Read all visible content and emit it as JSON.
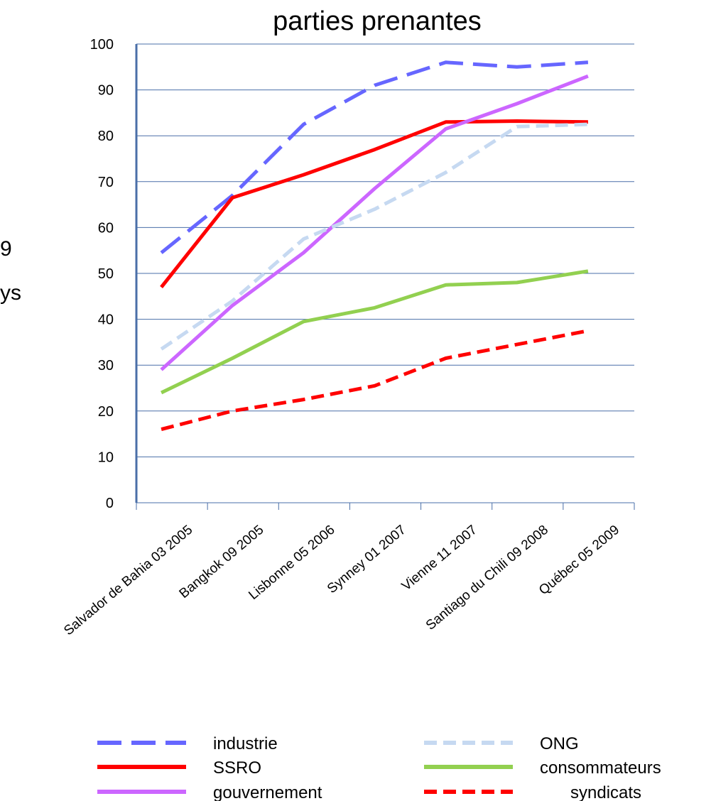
{
  "chart_data": {
    "type": "line",
    "title": "parties prenantes",
    "categories": [
      "Salvador de Bahia 03 2005",
      "Bangkok 09 2005",
      "Lisbonne 05 2006",
      "Synney 01 2007",
      "Vienne 11 2007",
      "Santiago du Chili 09 2008",
      "Québec 05 2009"
    ],
    "ylim": [
      0,
      100
    ],
    "yticks": [
      0,
      10,
      20,
      30,
      40,
      50,
      60,
      70,
      80,
      90,
      100
    ],
    "grid": true,
    "legend_position": "bottom",
    "series": [
      {
        "name": "industrie",
        "color": "#6666ff",
        "dash": "long-dash",
        "values": [
          54.5,
          67,
          82.5,
          91,
          96,
          95,
          96
        ]
      },
      {
        "name": "SSRO",
        "color": "#ff0000",
        "dash": "solid",
        "values": [
          47,
          66.5,
          71.5,
          77,
          83,
          83.2,
          83
        ]
      },
      {
        "name": "gouvernement",
        "color": "#cc66ff",
        "dash": "solid",
        "values": [
          29,
          43,
          54.5,
          68.5,
          81.5,
          87,
          93
        ]
      },
      {
        "name": "ONG",
        "color": "#c6d9f1",
        "dash": "dash",
        "values": [
          33.5,
          44,
          57.5,
          64,
          72,
          82,
          82.5
        ]
      },
      {
        "name": "consommateurs",
        "color": "#92d050",
        "dash": "solid",
        "values": [
          24,
          31.5,
          39.5,
          42.5,
          47.5,
          48,
          50.5
        ]
      },
      {
        "name": "syndicats",
        "color": "#ff0000",
        "dash": "dash",
        "values": [
          16,
          20,
          22.5,
          25.5,
          31.5,
          34.5,
          37.5
        ]
      }
    ]
  },
  "side_text": [
    "9",
    "ys"
  ]
}
